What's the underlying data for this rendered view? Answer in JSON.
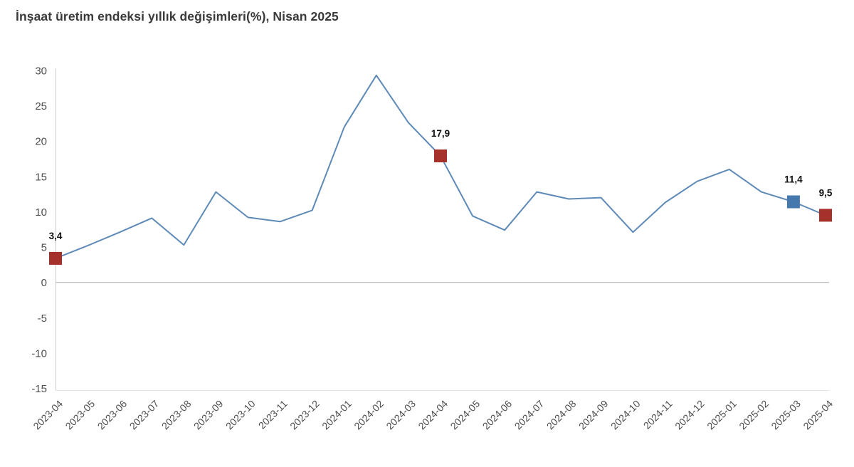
{
  "title": "İnşaat üretim endeksi yıllık değişimleri(%), Nisan 2025",
  "chart_data": {
    "type": "line",
    "title": "İnşaat üretim endeksi yıllık değişimleri(%), Nisan 2025",
    "xlabel": "",
    "ylabel": "",
    "x": [
      "2023-04",
      "2023-05",
      "2023-06",
      "2023-07",
      "2023-08",
      "2023-09",
      "2023-10",
      "2023-11",
      "2023-12",
      "2024-01",
      "2024-02",
      "2024-03",
      "2024-04",
      "2024-05",
      "2024-06",
      "2024-07",
      "2024-08",
      "2024-09",
      "2024-10",
      "2024-11",
      "2024-12",
      "2025-01",
      "2025-02",
      "2025-03",
      "2025-04"
    ],
    "series": [
      {
        "name": "İnşaat üretim endeksi yıllık değişim (%)",
        "values": [
          3.4,
          5.2,
          7.1,
          9.1,
          5.3,
          12.8,
          9.2,
          8.6,
          10.2,
          22.0,
          29.3,
          22.6,
          17.9,
          9.4,
          7.4,
          12.8,
          11.8,
          12.0,
          7.1,
          11.3,
          14.3,
          16.0,
          12.8,
          11.4,
          9.5
        ]
      }
    ],
    "ylim": [
      -15,
      30
    ],
    "yticks": [
      30,
      25,
      20,
      15,
      10,
      5,
      0,
      -5,
      -10,
      -15
    ],
    "grid": "zero-line-only",
    "legend": "none",
    "line_color": "#5e8ab8",
    "axis_color": "#cccccc",
    "zero_line_color": "#b5b5b5",
    "bottom_line_color": "#e2e2e2",
    "annotations": [
      {
        "x": "2023-04",
        "value": 3.4,
        "label": "3,4",
        "marker_color": "#a5312a"
      },
      {
        "x": "2024-04",
        "value": 17.9,
        "label": "17,9",
        "marker_color": "#a5312a"
      },
      {
        "x": "2025-03",
        "value": 11.4,
        "label": "11,4",
        "marker_color": "#4579ad"
      },
      {
        "x": "2025-04",
        "value": 9.5,
        "label": "9,5",
        "marker_color": "#a5312a"
      }
    ]
  }
}
